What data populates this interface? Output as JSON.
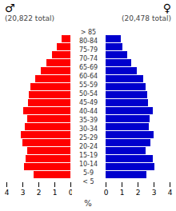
{
  "chart_data": {
    "type": "bar",
    "orientation": "horizontal",
    "categories": [
      "> 85",
      "80-84",
      "75-79",
      "70-74",
      "65-69",
      "60-64",
      "55-59",
      "50-54",
      "45-49",
      "40-44",
      "35-39",
      "30-34",
      "25-29",
      "20-24",
      "15-19",
      "10-14",
      "5-9",
      "< 5"
    ],
    "series": [
      {
        "name": "♂",
        "subtitle": "(20,822 total)",
        "color": "#ff0000",
        "values": [
          0.55,
          0.85,
          1.15,
          1.5,
          1.85,
          2.2,
          2.5,
          2.6,
          2.65,
          2.95,
          2.7,
          2.85,
          3.1,
          3.0,
          2.7,
          2.8,
          2.9,
          2.3
        ]
      },
      {
        "name": "♀",
        "subtitle": "(20,478 total)",
        "color": "#0000cd",
        "values": [
          0.95,
          1.05,
          1.35,
          1.6,
          1.95,
          2.35,
          2.5,
          2.6,
          2.65,
          2.95,
          2.75,
          2.7,
          3.0,
          2.8,
          2.5,
          2.95,
          3.05,
          2.55
        ]
      }
    ],
    "xlabel": "%",
    "xlim": [
      0,
      4
    ],
    "xticks": [
      0,
      1,
      2,
      3,
      4
    ]
  }
}
